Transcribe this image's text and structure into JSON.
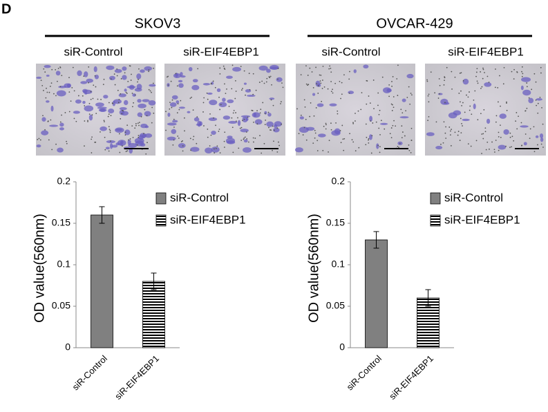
{
  "panel": "D",
  "groups": [
    {
      "title": "SKOV3",
      "images": [
        "siR-Control",
        "siR-EIF4EBP1"
      ]
    },
    {
      "title": "OVCAR-429",
      "images": [
        "siR-Control",
        "siR-EIF4EBP1"
      ]
    }
  ],
  "chart_data": [
    {
      "type": "bar",
      "y_label": "OD value(560nm)",
      "categories": [
        "siR-Control",
        "siR-EIF4EBP1"
      ],
      "series": [
        {
          "name": "siR-Control",
          "color": "#808080",
          "hatch": false,
          "values": [
            0.16,
            null
          ],
          "errors": [
            0.01,
            null
          ]
        },
        {
          "name": "siR-EIF4EBP1",
          "color": "#000000",
          "hatch": true,
          "values": [
            null,
            0.08
          ],
          "errors": [
            null,
            0.01
          ]
        }
      ],
      "ylim": [
        0,
        0.2
      ],
      "yticks": [
        0,
        0.05,
        0.1,
        0.15,
        0.2
      ],
      "legend": "upper right"
    },
    {
      "type": "bar",
      "y_label": "OD value(560nm)",
      "categories": [
        "siR-Control",
        "siR-EIF4EBP1"
      ],
      "series": [
        {
          "name": "siR-Control",
          "color": "#808080",
          "hatch": false,
          "values": [
            0.13,
            null
          ],
          "errors": [
            0.01,
            null
          ]
        },
        {
          "name": "siR-EIF4EBP1",
          "color": "#000000",
          "hatch": true,
          "values": [
            null,
            0.06
          ],
          "errors": [
            null,
            0.01
          ]
        }
      ],
      "ylim": [
        0,
        0.2
      ],
      "yticks": [
        0,
        0.05,
        0.1,
        0.15,
        0.2
      ],
      "legend": "upper right"
    }
  ]
}
